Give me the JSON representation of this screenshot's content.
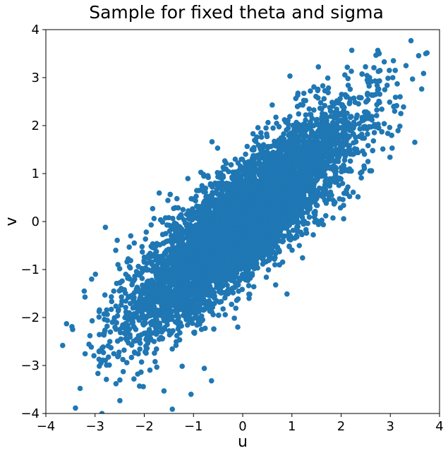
{
  "chart_data": {
    "type": "scatter",
    "title": "Sample for fixed theta and sigma",
    "xlabel": "u",
    "ylabel": "v",
    "xlim": [
      -4,
      4
    ],
    "ylim": [
      -4,
      4
    ],
    "xticks": [
      -4,
      -3,
      -2,
      -1,
      0,
      1,
      2,
      3,
      4
    ],
    "yticks": [
      -4,
      -3,
      -2,
      -1,
      0,
      1,
      2,
      3,
      4
    ],
    "tick_labels_x": [
      "−4",
      "−3",
      "−2",
      "−1",
      "0",
      "1",
      "2",
      "3",
      "4"
    ],
    "tick_labels_y": [
      "−4",
      "−3",
      "−2",
      "−1",
      "0",
      "1",
      "2",
      "3",
      "4"
    ],
    "grid": false,
    "marker_color": "#1f77b4",
    "series": [
      {
        "points": [
          [
            -3.58,
            -2.13
          ],
          [
            -3.47,
            -2.19
          ],
          [
            -3.22,
            -1.45
          ],
          [
            -3.07,
            -1.2
          ],
          [
            -2.92,
            -2.87
          ],
          [
            -2.88,
            -2.95
          ],
          [
            -2.83,
            -2.73
          ],
          [
            -2.81,
            -2.04
          ],
          [
            -2.75,
            -2.06
          ],
          [
            -2.7,
            -2.5
          ],
          [
            -2.86,
            -4.0
          ],
          [
            -2.79,
            -0.12
          ],
          [
            -2.77,
            -3.29
          ],
          [
            -2.62,
            -1.45
          ],
          [
            -2.58,
            -0.6
          ],
          [
            -2.55,
            -0.39
          ],
          [
            -2.5,
            -2.25
          ],
          [
            -2.47,
            -1.74
          ],
          [
            -2.45,
            -1.24
          ],
          [
            -2.41,
            -2.68
          ],
          [
            -2.38,
            -1.99
          ],
          [
            -2.35,
            -0.84
          ],
          [
            -2.29,
            -2.41
          ],
          [
            -2.21,
            -3.28
          ],
          [
            -2.09,
            -1.6
          ],
          [
            -2.02,
            -3.44
          ],
          [
            -1.96,
            -0.22
          ],
          [
            -1.86,
            -0.07
          ],
          [
            -1.83,
            0.27
          ],
          [
            -1.78,
            -2.92
          ],
          [
            -1.6,
            -3.53
          ],
          [
            -1.43,
            -3.91
          ],
          [
            -1.52,
            0.44
          ],
          [
            -1.4,
            -1.22
          ],
          [
            -1.05,
            -3.6
          ],
          [
            -0.78,
            -3.06
          ],
          [
            -0.6,
            -1.94
          ],
          [
            -0.51,
            1.53
          ],
          [
            -0.45,
            1.01
          ],
          [
            -0.1,
            -2.2
          ],
          [
            0.1,
            1.06
          ],
          [
            0.13,
            -1.6
          ],
          [
            0.21,
            1.83
          ],
          [
            0.37,
            1.85
          ],
          [
            0.48,
            -1.16
          ],
          [
            0.6,
            2.43
          ],
          [
            0.67,
            -1.32
          ],
          [
            0.9,
            -1.51
          ],
          [
            0.92,
            2.11
          ],
          [
            1.15,
            -0.5
          ],
          [
            1.21,
            0.65
          ],
          [
            1.41,
            2.15
          ],
          [
            1.54,
            -0.06
          ],
          [
            1.65,
            0.64
          ],
          [
            1.74,
            1.25
          ],
          [
            1.88,
            0.82
          ],
          [
            2.06,
            1.06
          ],
          [
            2.41,
            0.91
          ],
          [
            2.53,
            2.95
          ],
          [
            2.78,
            2.48
          ],
          [
            2.98,
            3.15
          ],
          [
            3.05,
            3.0
          ],
          [
            3.1,
            3.15
          ],
          [
            3.14,
            2.87
          ],
          [
            3.42,
            3.77
          ],
          [
            3.72,
            3.5
          ]
        ]
      }
    ]
  }
}
